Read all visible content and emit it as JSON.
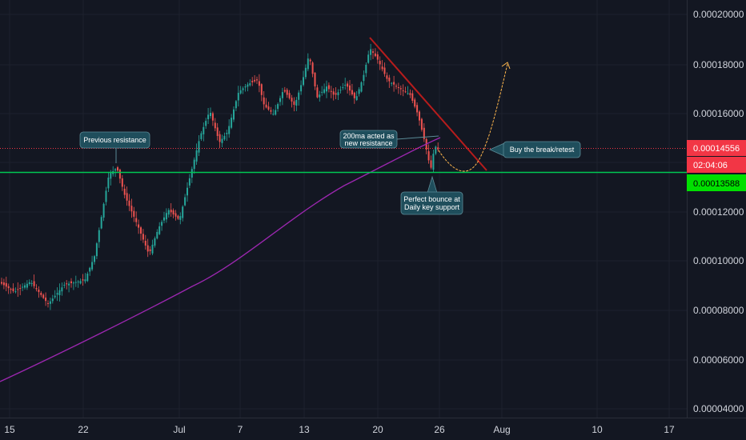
{
  "chart_data": {
    "type": "candlestick",
    "x_ticks": [
      "15",
      "22",
      "Jul",
      "7",
      "13",
      "20",
      "26",
      "Aug",
      "10",
      "17"
    ],
    "y_ticks": [
      "0.00020000",
      "0.00018000",
      "0.00016000",
      "0.00014000",
      "0.00012000",
      "0.00010000",
      "0.00008000",
      "0.00006000",
      "0.00004000"
    ],
    "ylim": [
      3.95e-05,
      0.0002095
    ],
    "price_tags": {
      "current": "0.00014556",
      "countdown": "02:04:06",
      "support": "0.00013588"
    },
    "levels": {
      "resistance": 0.00014556,
      "support": 0.00013588
    },
    "annotations": {
      "previous_resistance": "Previous resistance",
      "ma_line1": "200ma acted as",
      "ma_line2": "new resistance",
      "buy": "Buy the break/retest",
      "bounce_line1": "Perfect bounce at",
      "bounce_line2": "Daily key support"
    },
    "colors": {
      "background": "#131722",
      "up": "#26a69a",
      "down": "#ef5350",
      "ma": "#9c27b0",
      "support": "#00c853",
      "resistance": "#f23645",
      "trendline": "#b71c1c",
      "projection": "#ffb74d",
      "note": "#1f4e5c"
    }
  }
}
